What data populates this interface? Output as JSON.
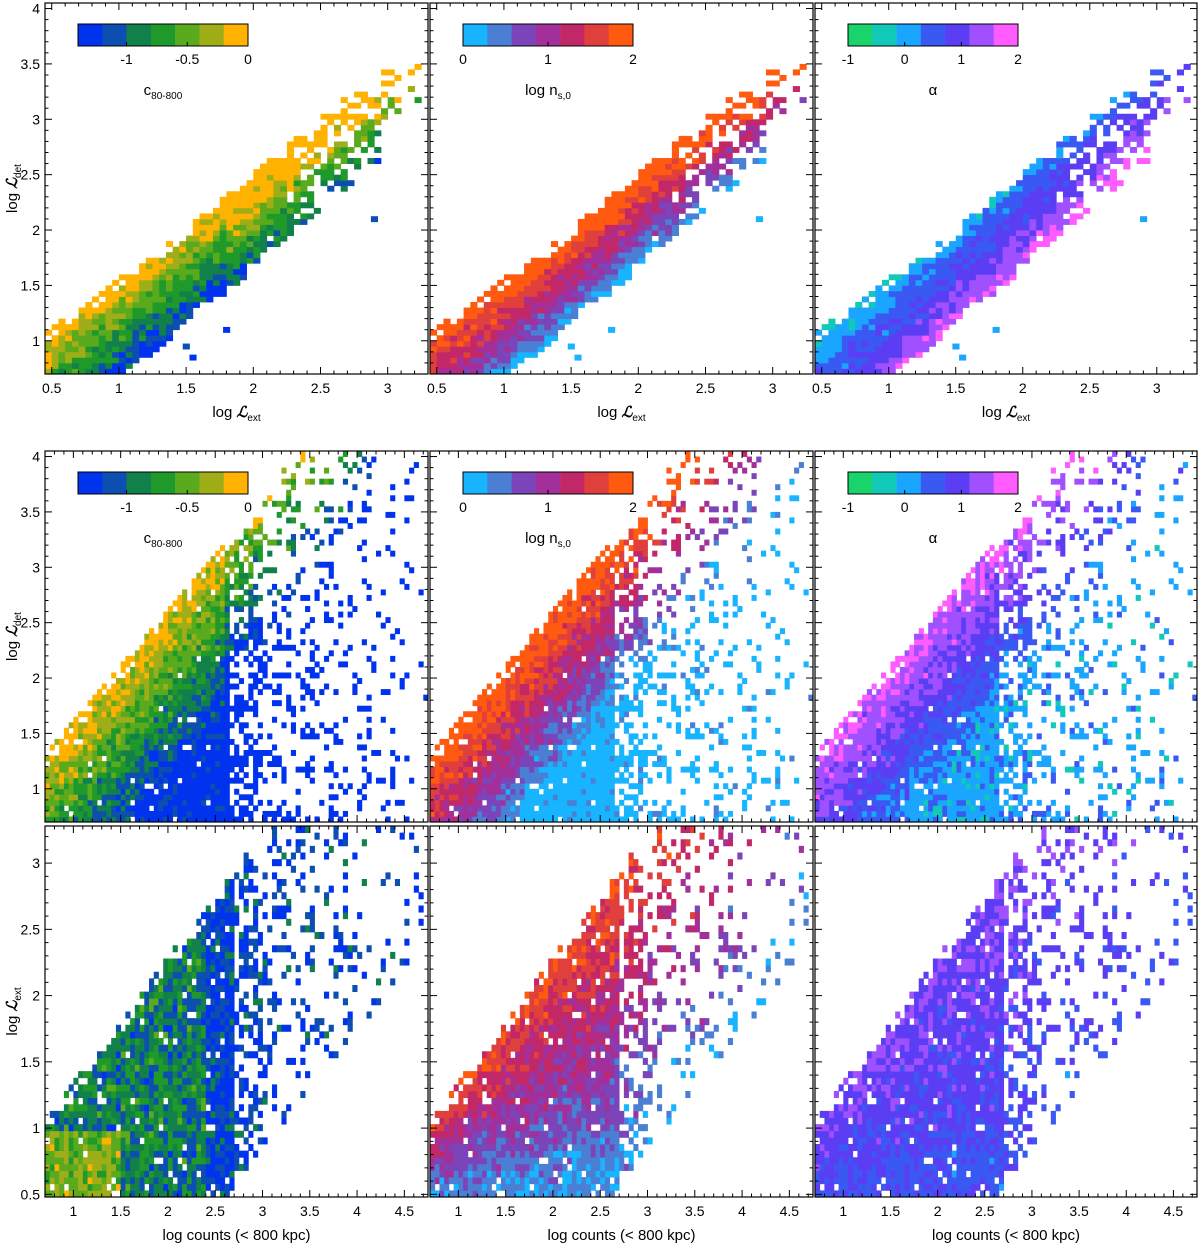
{
  "colormaps": {
    "c": [
      "#0033ee",
      "#0d4fb0",
      "#12804a",
      "#1f9a2a",
      "#5aaa1e",
      "#9fae18",
      "#ffb300"
    ],
    "n": [
      "#19b4ff",
      "#4a7fd4",
      "#7b44b8",
      "#a3309a",
      "#c22868",
      "#e0403c",
      "#ff5a10"
    ],
    "a": [
      "#18d46a",
      "#12c8b8",
      "#1aa6ff",
      "#3a58f2",
      "#5b3ef4",
      "#a050ff",
      "#ff5cff"
    ]
  },
  "colorbars": [
    {
      "key": "c",
      "label_main": "c",
      "label_sub": "80-800",
      "range": [
        -1.4,
        0
      ],
      "ticks": [
        "-1",
        "-0.5",
        "0"
      ],
      "tick_values": [
        -1,
        -0.5,
        0
      ]
    },
    {
      "key": "n",
      "label_main": "log n",
      "label_sub": "s,0",
      "range": [
        0,
        2
      ],
      "ticks": [
        "0",
        "1",
        "2"
      ],
      "tick_values": [
        0,
        1,
        2
      ]
    },
    {
      "key": "a",
      "label_main": "α",
      "label_sub": "",
      "range": [
        -1,
        2
      ],
      "ticks": [
        "-1",
        "0",
        "1",
        "2"
      ],
      "tick_values": [
        -1,
        0,
        1,
        2
      ]
    }
  ],
  "axis_labels": {
    "log_L_det": {
      "prefix": "log ",
      "sym": "ℒ",
      "sub": "det"
    },
    "log_L_ext": {
      "prefix": "log ",
      "sym": "ℒ",
      "sub": "ext"
    },
    "log_counts": {
      "text": "log counts (< 800 kpc)"
    }
  },
  "chart_data": [
    {
      "type": "heatmap",
      "row": 1,
      "col": 1,
      "colorbar": "c",
      "x_axis": "log_L_ext",
      "y_axis": "log_L_det",
      "xlim": [
        0.45,
        3.3
      ],
      "ylim": [
        0.7,
        4.05
      ],
      "xticks": [
        "0.5",
        "1",
        "1.5",
        "2",
        "2.5",
        "3"
      ],
      "xtick_values": [
        0.5,
        1,
        1.5,
        2,
        2.5,
        3
      ],
      "yticks": [
        "1",
        "1.5",
        "2",
        "2.5",
        "3",
        "3.5",
        "4"
      ],
      "ytick_values": [
        1,
        1.5,
        2,
        2.5,
        3,
        3.5,
        4
      ],
      "colorbar_shown": true,
      "xlabel_shown": true,
      "ylabel_shown": true
    },
    {
      "type": "heatmap",
      "row": 1,
      "col": 2,
      "colorbar": "n",
      "x_axis": "log_L_ext",
      "y_axis": "log_L_det",
      "xlim": [
        0.45,
        3.3
      ],
      "ylim": [
        0.7,
        4.05
      ],
      "xticks": [
        "0.5",
        "1",
        "1.5",
        "2",
        "2.5",
        "3"
      ],
      "xtick_values": [
        0.5,
        1,
        1.5,
        2,
        2.5,
        3
      ],
      "yticks": [],
      "ytick_values": [],
      "colorbar_shown": true,
      "xlabel_shown": true,
      "ylabel_shown": false
    },
    {
      "type": "heatmap",
      "row": 1,
      "col": 3,
      "colorbar": "a",
      "x_axis": "log_L_ext",
      "y_axis": "log_L_det",
      "xlim": [
        0.45,
        3.3
      ],
      "ylim": [
        0.7,
        4.05
      ],
      "xticks": [
        "0.5",
        "1",
        "1.5",
        "2",
        "2.5",
        "3"
      ],
      "xtick_values": [
        0.5,
        1,
        1.5,
        2,
        2.5,
        3
      ],
      "yticks": [],
      "ytick_values": [],
      "colorbar_shown": true,
      "xlabel_shown": true,
      "ylabel_shown": false
    },
    {
      "type": "heatmap",
      "row": 2,
      "col": 1,
      "colorbar": "c",
      "x_axis": "log_counts",
      "y_axis": "log_L_det",
      "xlim": [
        0.7,
        4.75
      ],
      "ylim": [
        0.7,
        4.05
      ],
      "xticks": [],
      "xtick_values": [],
      "yticks": [
        "1",
        "1.5",
        "2",
        "2.5",
        "3",
        "3.5",
        "4"
      ],
      "ytick_values": [
        1,
        1.5,
        2,
        2.5,
        3,
        3.5,
        4
      ],
      "colorbar_shown": true,
      "xlabel_shown": false,
      "ylabel_shown": true
    },
    {
      "type": "heatmap",
      "row": 2,
      "col": 2,
      "colorbar": "n",
      "x_axis": "log_counts",
      "y_axis": "log_L_det",
      "xlim": [
        0.7,
        4.75
      ],
      "ylim": [
        0.7,
        4.05
      ],
      "xticks": [],
      "xtick_values": [],
      "yticks": [],
      "ytick_values": [],
      "colorbar_shown": true,
      "xlabel_shown": false,
      "ylabel_shown": false
    },
    {
      "type": "heatmap",
      "row": 2,
      "col": 3,
      "colorbar": "a",
      "x_axis": "log_counts",
      "y_axis": "log_L_det",
      "xlim": [
        0.7,
        4.75
      ],
      "ylim": [
        0.7,
        4.05
      ],
      "xticks": [],
      "xtick_values": [],
      "yticks": [],
      "ytick_values": [],
      "colorbar_shown": true,
      "xlabel_shown": false,
      "ylabel_shown": false
    },
    {
      "type": "heatmap",
      "row": 3,
      "col": 1,
      "colorbar": "c",
      "x_axis": "log_counts",
      "y_axis": "log_L_ext",
      "xlim": [
        0.7,
        4.75
      ],
      "ylim": [
        0.48,
        3.28
      ],
      "xticks": [
        "1",
        "1.5",
        "2",
        "2.5",
        "3",
        "3.5",
        "4",
        "4.5"
      ],
      "xtick_values": [
        1,
        1.5,
        2,
        2.5,
        3,
        3.5,
        4,
        4.5
      ],
      "yticks": [
        "0.5",
        "1",
        "1.5",
        "2",
        "2.5",
        "3"
      ],
      "ytick_values": [
        0.5,
        1,
        1.5,
        2,
        2.5,
        3
      ],
      "colorbar_shown": false,
      "xlabel_shown": true,
      "ylabel_shown": true
    },
    {
      "type": "heatmap",
      "row": 3,
      "col": 2,
      "colorbar": "n",
      "x_axis": "log_counts",
      "y_axis": "log_L_ext",
      "xlim": [
        0.7,
        4.75
      ],
      "ylim": [
        0.48,
        3.28
      ],
      "xticks": [
        "1",
        "1.5",
        "2",
        "2.5",
        "3",
        "3.5",
        "4",
        "4.5"
      ],
      "xtick_values": [
        1,
        1.5,
        2,
        2.5,
        3,
        3.5,
        4,
        4.5
      ],
      "yticks": [],
      "ytick_values": [],
      "colorbar_shown": false,
      "xlabel_shown": true,
      "ylabel_shown": false
    },
    {
      "type": "heatmap",
      "row": 3,
      "col": 3,
      "colorbar": "a",
      "x_axis": "log_counts",
      "y_axis": "log_L_ext",
      "xlim": [
        0.7,
        4.75
      ],
      "ylim": [
        0.48,
        3.28
      ],
      "xticks": [
        "1",
        "1.5",
        "2",
        "2.5",
        "3",
        "3.5",
        "4",
        "4.5"
      ],
      "xtick_values": [
        1,
        1.5,
        2,
        2.5,
        3,
        3.5,
        4,
        4.5
      ],
      "yticks": [],
      "ytick_values": [],
      "colorbar_shown": false,
      "xlabel_shown": true,
      "ylabel_shown": false
    }
  ]
}
